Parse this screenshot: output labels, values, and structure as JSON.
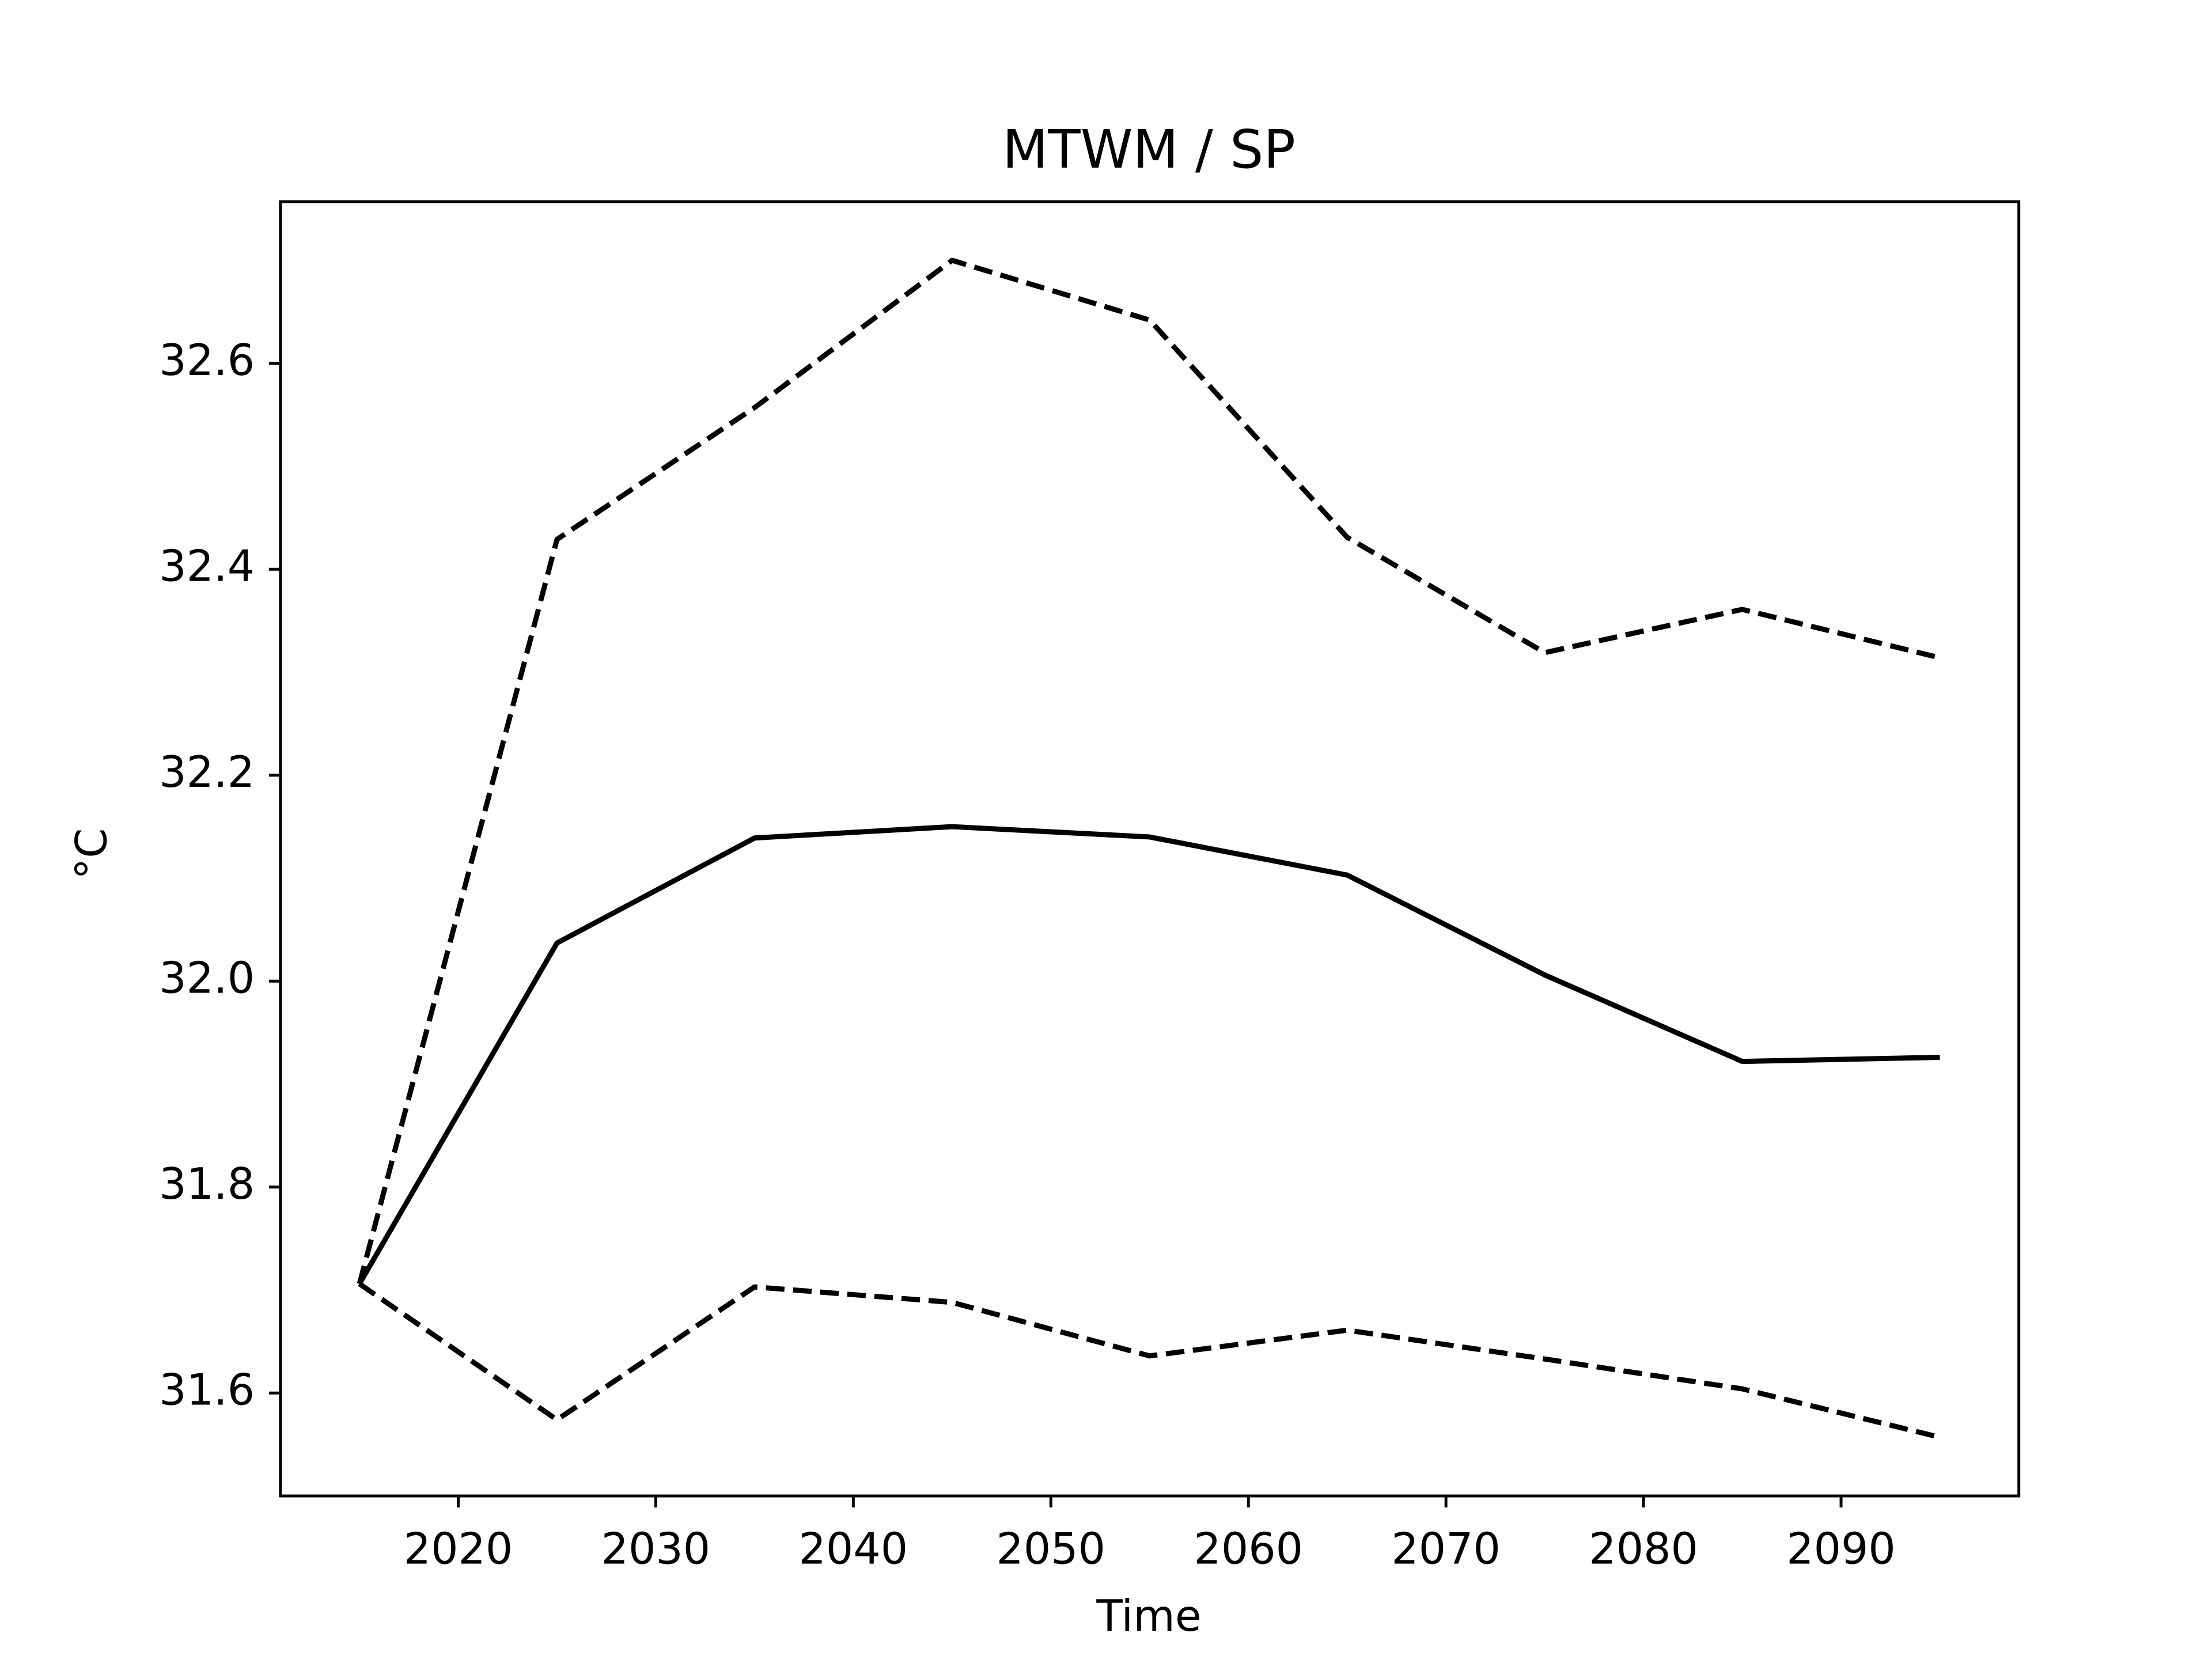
{
  "chart_data": {
    "type": "line",
    "title": "MTWM / SP",
    "x_label": "Time",
    "y_label": "°C",
    "x": [
      2015,
      2025,
      2035,
      2045,
      2055,
      2065,
      2075,
      2085,
      2095
    ],
    "series": [
      {
        "color": "#000000",
        "linestyle": "solid",
        "values": [
          31.706,
          32.037,
          32.139,
          32.15,
          32.14,
          32.103,
          32.006,
          31.922,
          31.926
        ]
      },
      {
        "color": "#000000",
        "linestyle": "dashed",
        "values": [
          31.706,
          32.429,
          32.557,
          32.7,
          32.642,
          32.431,
          32.319,
          32.361,
          32.314
        ]
      },
      {
        "color": "#000000",
        "linestyle": "dashed",
        "values": [
          31.706,
          31.574,
          31.703,
          31.688,
          31.636,
          31.661,
          31.633,
          31.604,
          31.557
        ]
      }
    ],
    "xlim": [
      2011,
      2099
    ],
    "xticks": [
      2020,
      2030,
      2040,
      2050,
      2060,
      2070,
      2080,
      2090
    ],
    "ylim": [
      31.5,
      32.757
    ],
    "yticks": [
      {
        "value": 31.6,
        "label": "31.6"
      },
      {
        "value": 31.8,
        "label": "31.8"
      },
      {
        "value": 32.0,
        "label": "32.0"
      },
      {
        "value": 32.2,
        "label": "32.2"
      },
      {
        "value": 32.4,
        "label": "32.4"
      },
      {
        "value": 32.6,
        "label": "32.6"
      }
    ],
    "grid": false
  }
}
